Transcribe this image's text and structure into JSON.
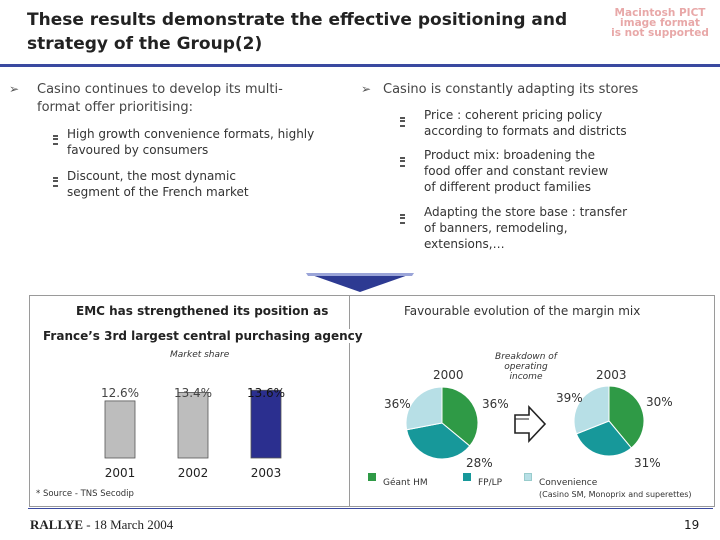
{
  "title": {
    "line1": "These results demonstrate the effective positioning and",
    "line2": "strategy of the Group(2)"
  },
  "pict_notice": [
    "Macintosh PICT",
    "image format",
    "is not supported"
  ],
  "left_col": {
    "heading_line1": "Casino continues to develop its multi-",
    "heading_line2": "format offer prioritising:",
    "items": [
      {
        "line1": "High growth convenience formats, highly",
        "line2": "favoured by consumers"
      },
      {
        "line1": "Discount, the most dynamic",
        "line2": "segment of the French market"
      }
    ]
  },
  "right_col": {
    "heading": "Casino is constantly adapting its stores",
    "items": [
      {
        "lines": [
          "Price : coherent pricing policy",
          "according to formats and districts"
        ]
      },
      {
        "lines": [
          "Product mix: broadening the",
          "food offer and constant review",
          "of different product families"
        ]
      },
      {
        "lines": [
          "Adapting the store base : transfer",
          "of banners, remodeling,",
          "extensions,…"
        ]
      }
    ]
  },
  "emc_panel": {
    "title_line1": "EMC has strengthened its position as",
    "title_line2": "France’s 3rd largest central purchasing agency",
    "subtitle": "Market share",
    "source": "* Source - TNS Secodip"
  },
  "margin_panel": {
    "title": "Favourable evolution of the margin mix",
    "subtitle_line1": "Breakdown of operating",
    "subtitle_line2": "income",
    "year_left": "2000",
    "year_right": "2003",
    "pie_left": {
      "geant": "36%",
      "fplp": "36%",
      "conv": "28%"
    },
    "pie_right": {
      "geant": "39%",
      "fplp": "30%",
      "conv": "31%"
    },
    "legend": {
      "geant": "Géant HM",
      "fplp": "FP/LP",
      "conv": "Convenience",
      "conv_note": "(Casino SM, Monoprix and superettes)"
    },
    "colors": {
      "geant": "#2f9a46",
      "fplp": "#17989a",
      "conv": "#b7dfe6"
    }
  },
  "chart_data": [
    {
      "type": "bar",
      "title": "Market share",
      "categories": [
        "2001",
        "2002",
        "2003"
      ],
      "values": [
        12.6,
        13.4,
        13.6
      ],
      "labels": [
        "12.6%",
        "13.4%",
        "13.6%"
      ],
      "colors": [
        "#bdbdbd",
        "#bdbdbd",
        "#2b2f8f"
      ]
    },
    {
      "type": "pie",
      "title": "2000",
      "labels": [
        "Géant HM",
        "FP/LP",
        "Convenience"
      ],
      "values": [
        36,
        36,
        28
      ]
    },
    {
      "type": "pie",
      "title": "2003",
      "labels": [
        "Géant HM",
        "FP/LP",
        "Convenience"
      ],
      "values": [
        39,
        30,
        31
      ]
    }
  ],
  "footer": {
    "brand": "RALLYE",
    "date": " - 18 March 2004",
    "page": "19"
  }
}
